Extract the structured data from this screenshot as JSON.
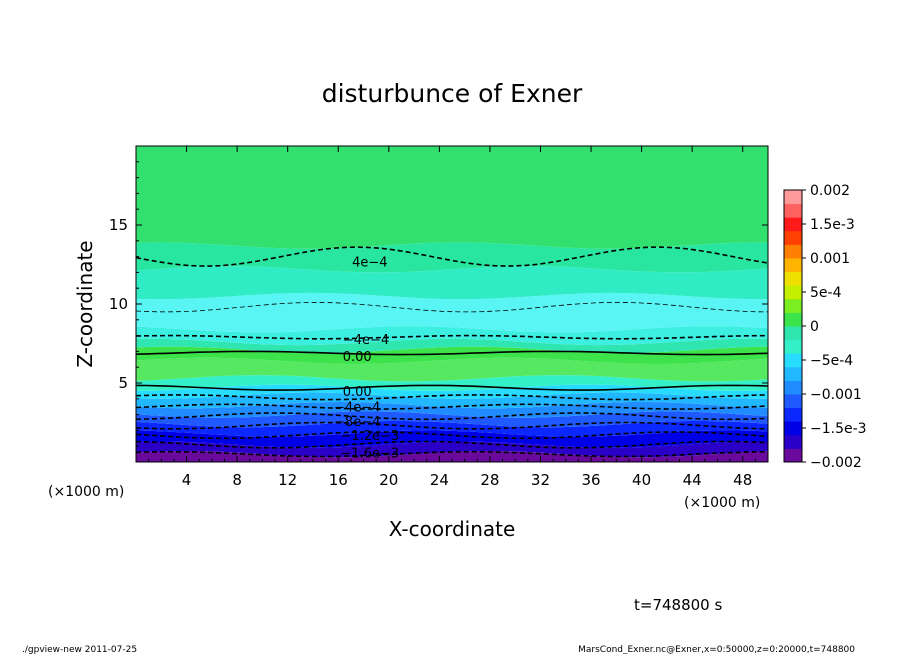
{
  "chart_data": {
    "type": "heatmap",
    "title": "disturbunce of Exner",
    "xlabel": "X-coordinate",
    "ylabel": "Z-coordinate",
    "x_unit": "(×1000 m)",
    "y_unit": "(×1000 m)",
    "xlim": [
      0,
      50
    ],
    "ylim": [
      0,
      20
    ],
    "x_ticks": [
      "4",
      "8",
      "12",
      "16",
      "20",
      "24",
      "28",
      "32",
      "36",
      "40",
      "44",
      "48"
    ],
    "y_ticks": [
      "5",
      "10",
      "15"
    ],
    "colorbar": {
      "ticks": [
        "0.002",
        "1.5e-3",
        "0.001",
        "5e-4",
        "0",
        "−5e-4",
        "−0.001",
        "−1.5e-3",
        "−0.002"
      ],
      "range": [
        -0.002,
        0.002
      ]
    },
    "bands": [
      {
        "z0": 0.0,
        "z1": 0.5,
        "color": "#6a0a9c"
      },
      {
        "z0": 0.5,
        "z1": 1.1,
        "color": "#2a00c8"
      },
      {
        "z0": 1.1,
        "z1": 1.8,
        "color": "#0000e6"
      },
      {
        "z0": 1.8,
        "z1": 2.4,
        "color": "#0a28ff"
      },
      {
        "z0": 2.4,
        "z1": 3.0,
        "color": "#1e5aff"
      },
      {
        "z0": 3.0,
        "z1": 3.6,
        "color": "#1f8cff"
      },
      {
        "z0": 3.6,
        "z1": 4.2,
        "color": "#22b8ff"
      },
      {
        "z0": 4.2,
        "z1": 4.7,
        "color": "#28dcff"
      },
      {
        "z0": 4.7,
        "z1": 5.3,
        "color": "#34f0c8"
      },
      {
        "z0": 5.3,
        "z1": 6.4,
        "color": "#55e860"
      },
      {
        "z0": 6.4,
        "z1": 7.1,
        "color": "#3ce34a"
      },
      {
        "z0": 7.1,
        "z1": 7.6,
        "color": "#30e6b0"
      },
      {
        "z0": 7.6,
        "z1": 8.4,
        "color": "#3cefe0"
      },
      {
        "z0": 8.4,
        "z1": 10.5,
        "color": "#59f5f5"
      },
      {
        "z0": 10.5,
        "z1": 12.2,
        "color": "#2fecc4"
      },
      {
        "z0": 12.2,
        "z1": 13.7,
        "color": "#28e6a0"
      },
      {
        "z0": 13.7,
        "z1": 20.0,
        "color": "#32e070"
      }
    ],
    "contours": [
      {
        "z": 13.0,
        "amp": 0.6,
        "dash": true,
        "bold": true
      },
      {
        "z": 9.8,
        "amp": 0.3,
        "dash": true,
        "bold": false
      },
      {
        "z": 7.9,
        "amp": 0.1,
        "dash": true,
        "bold": true
      },
      {
        "z": 6.9,
        "amp": 0.1,
        "dash": false,
        "bold": true
      },
      {
        "z": 4.7,
        "amp": 0.15,
        "dash": false,
        "bold": true
      },
      {
        "z": 4.1,
        "amp": 0.15,
        "dash": true,
        "bold": true
      },
      {
        "z": 3.5,
        "amp": 0.15,
        "dash": true,
        "bold": true
      },
      {
        "z": 2.9,
        "amp": 0.2,
        "dash": true,
        "bold": true
      },
      {
        "z": 2.3,
        "amp": 0.2,
        "dash": true,
        "bold": true
      },
      {
        "z": 1.7,
        "amp": 0.2,
        "dash": true,
        "bold": true
      },
      {
        "z": 1.1,
        "amp": 0.2,
        "dash": true,
        "bold": true
      },
      {
        "z": 0.5,
        "amp": 0.15,
        "dash": true,
        "bold": true
      }
    ],
    "contour_labels": [
      {
        "text": "4e−4",
        "x": 18.5,
        "z": 12.7
      },
      {
        "text": "−4e−4",
        "x": 18.2,
        "z": 7.8
      },
      {
        "text": "0.00",
        "x": 17.5,
        "z": 6.7
      },
      {
        "text": "0.00",
        "x": 17.5,
        "z": 4.5
      },
      {
        "text": "−4e−4",
        "x": 17.5,
        "z": 3.5
      },
      {
        "text": "−8e−4",
        "x": 17.5,
        "z": 2.6
      },
      {
        "text": "−1.2e−3",
        "x": 18.5,
        "z": 1.7
      },
      {
        "text": "−1.6e−3",
        "x": 18.5,
        "z": 0.6
      }
    ],
    "time_label": "t=748800 s"
  },
  "footer": {
    "left": "./gpview-new   2011-07-25",
    "right": "MarsCond_Exner.nc@Exner,x=0:50000,z=0:20000,t=748800"
  },
  "colors": {
    "frame": "#000000",
    "cbar": [
      "#6a0a9c",
      "#2a00c8",
      "#0000e6",
      "#0a28ff",
      "#1e5aff",
      "#1f8cff",
      "#22b8ff",
      "#28dcff",
      "#34f0c8",
      "#30e6b0",
      "#3ce34a",
      "#7aee20",
      "#c4f000",
      "#f0e000",
      "#ffb400",
      "#ff8000",
      "#ff4000",
      "#ff1a1a",
      "#ff6060",
      "#ff9a9a"
    ]
  }
}
